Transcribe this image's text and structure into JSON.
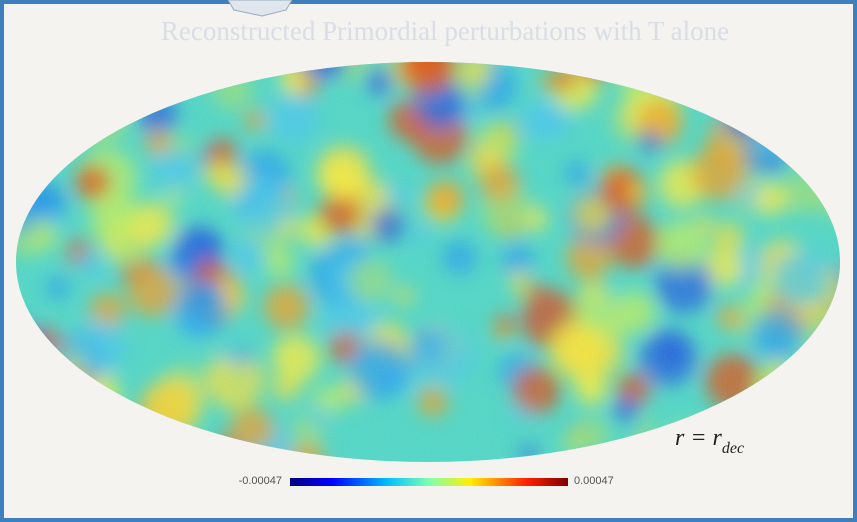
{
  "slide": {
    "title": "Reconstructed Primordial perturbations with T alone",
    "colorbar": {
      "min": -0.00047,
      "max": 0.00047
    },
    "annotation": {
      "text": "r = r",
      "subscript": "dec"
    }
  }
}
